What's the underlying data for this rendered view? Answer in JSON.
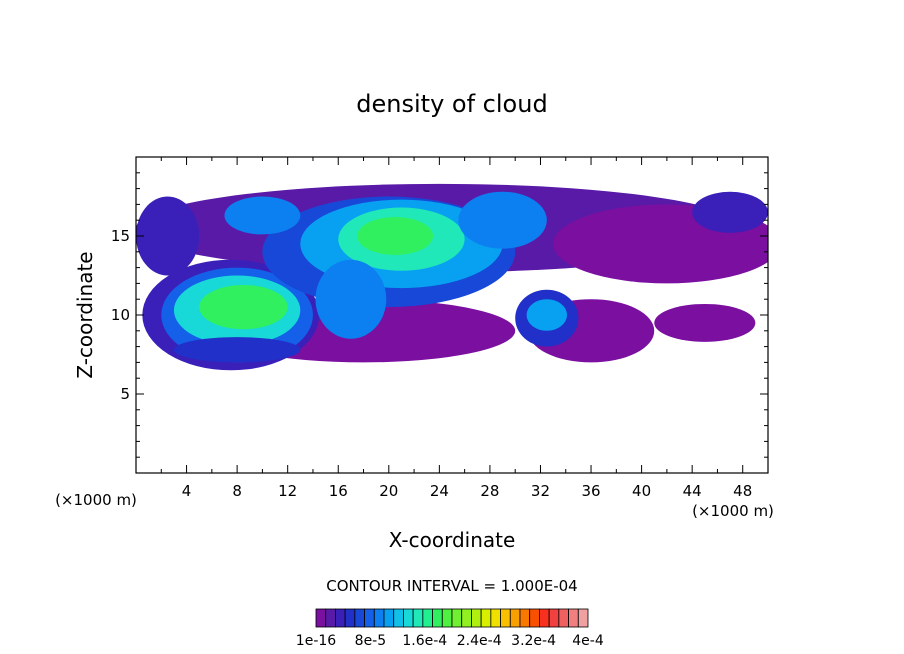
{
  "chart_data": {
    "type": "heatmap",
    "title": "density of cloud",
    "xlabel": "X-coordinate",
    "ylabel": "Z-coordinate",
    "x_unit_left": "(×1000 m)",
    "x_unit_right": "(×1000 m)",
    "xlim": [
      0,
      50
    ],
    "ylim": [
      0,
      20
    ],
    "x_ticks": [
      4,
      8,
      12,
      16,
      20,
      24,
      28,
      32,
      36,
      40,
      44,
      48
    ],
    "y_ticks": [
      5,
      10,
      15
    ],
    "contour_interval_text": "CONTOUR INTERVAL = 1.000E-04",
    "colorbar_labels": [
      "1e-16",
      "8e-5",
      "1.6e-4",
      "2.4e-4",
      "3.2e-4",
      "4e-4"
    ],
    "colorbar_colors": [
      "#7a0fa0",
      "#5a1aa8",
      "#3a20b8",
      "#2030c8",
      "#1848d8",
      "#1460e8",
      "#0c80f0",
      "#08a0f0",
      "#10c0e8",
      "#18d8d8",
      "#20e8b8",
      "#20f090",
      "#30f060",
      "#50f040",
      "#70f030",
      "#90f020",
      "#b0f010",
      "#d8f000",
      "#f0e000",
      "#f8c000",
      "#f8a000",
      "#f87800",
      "#f85000",
      "#f83020",
      "#f04040",
      "#f06060",
      "#f08080",
      "#f0a0a0"
    ],
    "blobs": [
      {
        "x": 24,
        "z": 15.5,
        "rx": 24,
        "ry": 2.8,
        "level": 1
      },
      {
        "x": 42,
        "z": 14.5,
        "rx": 9,
        "ry": 2.5,
        "level": 0
      },
      {
        "x": 45,
        "z": 9.5,
        "rx": 4,
        "ry": 1.2,
        "level": 0
      },
      {
        "x": 18,
        "z": 9,
        "rx": 12,
        "ry": 2,
        "level": 0
      },
      {
        "x": 36,
        "z": 9,
        "rx": 5,
        "ry": 2,
        "level": 0
      },
      {
        "x": 7.5,
        "z": 10,
        "rx": 7,
        "ry": 3.5,
        "level": 2
      },
      {
        "x": 8,
        "z": 10,
        "rx": 6,
        "ry": 3,
        "level": 5
      },
      {
        "x": 8,
        "z": 10.3,
        "rx": 5,
        "ry": 2.2,
        "level": 9
      },
      {
        "x": 8.5,
        "z": 10.5,
        "rx": 3.5,
        "ry": 1.4,
        "level": 12
      },
      {
        "x": 8,
        "z": 7.8,
        "rx": 5,
        "ry": 0.8,
        "level": 3
      },
      {
        "x": 20,
        "z": 14,
        "rx": 10,
        "ry": 3.5,
        "level": 4
      },
      {
        "x": 21,
        "z": 14.5,
        "rx": 8,
        "ry": 2.8,
        "level": 7
      },
      {
        "x": 21,
        "z": 14.8,
        "rx": 5,
        "ry": 2,
        "level": 10
      },
      {
        "x": 20.5,
        "z": 15,
        "rx": 3,
        "ry": 1.2,
        "level": 12
      },
      {
        "x": 17,
        "z": 11,
        "rx": 2.8,
        "ry": 2.5,
        "level": 6
      },
      {
        "x": 10,
        "z": 16.3,
        "rx": 3,
        "ry": 1.2,
        "level": 6
      },
      {
        "x": 29,
        "z": 16,
        "rx": 3.5,
        "ry": 1.8,
        "level": 6
      },
      {
        "x": 32.5,
        "z": 9.8,
        "rx": 2.5,
        "ry": 1.8,
        "level": 3
      },
      {
        "x": 32.5,
        "z": 10,
        "rx": 1.6,
        "ry": 1,
        "level": 7
      },
      {
        "x": 47,
        "z": 16.5,
        "rx": 3,
        "ry": 1.3,
        "level": 2
      },
      {
        "x": 2.5,
        "z": 15,
        "rx": 2.5,
        "ry": 2.5,
        "level": 2
      }
    ]
  }
}
